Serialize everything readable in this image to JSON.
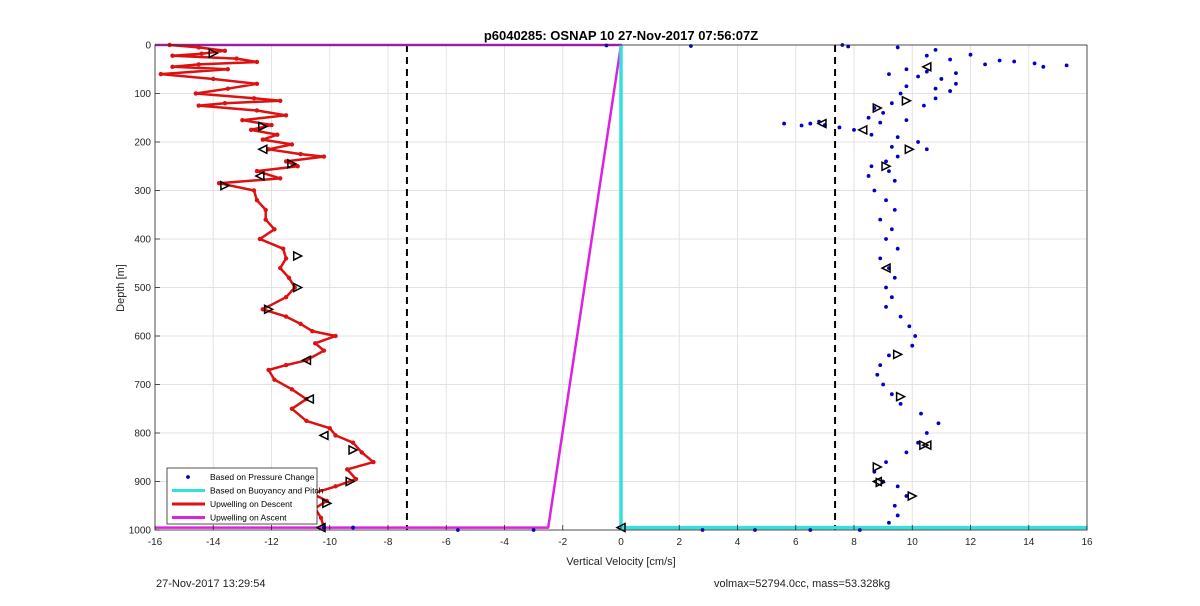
{
  "chart_data": {
    "type": "scatter",
    "title": "p6040285: OSNAP 10 27-Nov-2017 07:56:07Z",
    "xlabel": "Vertical Velocity [cm/s]",
    "ylabel": "Depth [m]",
    "xlim": [
      -16,
      16
    ],
    "ylim": [
      0,
      1000
    ],
    "y_reversed": true,
    "grid": true,
    "legend_placement": "bottom-left",
    "x_ticks": [
      "-16",
      "-14",
      "-12",
      "-10",
      "-8",
      "-6",
      "-4",
      "-2",
      "0",
      "2",
      "4",
      "6",
      "8",
      "10",
      "12",
      "14",
      "16"
    ],
    "y_ticks": [
      "0",
      "100",
      "200",
      "300",
      "400",
      "500",
      "600",
      "700",
      "800",
      "900",
      "1000"
    ],
    "reference_lines": [
      -7.35,
      7.35
    ],
    "series": [
      {
        "name": "Based on Pressure Change",
        "kind": "points",
        "color": "#0000cc",
        "points": [
          [
            7.6,
            0
          ],
          [
            7.8,
            3
          ],
          [
            2.4,
            2
          ],
          [
            -0.5,
            1
          ],
          [
            9.5,
            5
          ],
          [
            10.8,
            10
          ],
          [
            10.5,
            22
          ],
          [
            12,
            20
          ],
          [
            11.3,
            30
          ],
          [
            13,
            32
          ],
          [
            13.5,
            34
          ],
          [
            12.5,
            40
          ],
          [
            14.2,
            38
          ],
          [
            15.3,
            42
          ],
          [
            14.5,
            45
          ],
          [
            9.8,
            50
          ],
          [
            10.5,
            55
          ],
          [
            11.5,
            58
          ],
          [
            9.2,
            60
          ],
          [
            10.2,
            65
          ],
          [
            11,
            70
          ],
          [
            11.5,
            80
          ],
          [
            9.8,
            85
          ],
          [
            10.8,
            90
          ],
          [
            11.3,
            95
          ],
          [
            9.6,
            100
          ],
          [
            10.8,
            110
          ],
          [
            9.3,
            120
          ],
          [
            10.4,
            125
          ],
          [
            8.7,
            130
          ],
          [
            9,
            140
          ],
          [
            8.5,
            150
          ],
          [
            9.8,
            155
          ],
          [
            8.9,
            160
          ],
          [
            6.8,
            158
          ],
          [
            6.5,
            162
          ],
          [
            7,
            165
          ],
          [
            6.2,
            166
          ],
          [
            7.5,
            170
          ],
          [
            5.6,
            162
          ],
          [
            8,
            175
          ],
          [
            8.6,
            185
          ],
          [
            9.5,
            190
          ],
          [
            10.2,
            200
          ],
          [
            9.3,
            210
          ],
          [
            10.5,
            215
          ],
          [
            9.5,
            230
          ],
          [
            9.1,
            240
          ],
          [
            8.6,
            250
          ],
          [
            9.2,
            260
          ],
          [
            8.5,
            270
          ],
          [
            9.4,
            280
          ],
          [
            8.7,
            300
          ],
          [
            9.1,
            320
          ],
          [
            9.4,
            340
          ],
          [
            8.9,
            360
          ],
          [
            9.3,
            380
          ],
          [
            9.1,
            400
          ],
          [
            9.5,
            420
          ],
          [
            8.9,
            440
          ],
          [
            9.2,
            460
          ],
          [
            9.4,
            480
          ],
          [
            9.1,
            500
          ],
          [
            9.3,
            520
          ],
          [
            9.1,
            540
          ],
          [
            9.6,
            560
          ],
          [
            9.9,
            580
          ],
          [
            10.1,
            600
          ],
          [
            10,
            620
          ],
          [
            9.2,
            640
          ],
          [
            8.9,
            660
          ],
          [
            8.8,
            680
          ],
          [
            9,
            700
          ],
          [
            9.3,
            720
          ],
          [
            9.6,
            740
          ],
          [
            10.3,
            760
          ],
          [
            10.9,
            780
          ],
          [
            10.5,
            800
          ],
          [
            10.2,
            820
          ],
          [
            9.8,
            840
          ],
          [
            9.1,
            860
          ],
          [
            8.7,
            880
          ],
          [
            9,
            900
          ],
          [
            9.5,
            910
          ],
          [
            9.8,
            930
          ],
          [
            9.4,
            950
          ],
          [
            9.5,
            970
          ],
          [
            9.2,
            985
          ],
          [
            8.2,
            1000
          ],
          [
            6.5,
            1000
          ],
          [
            2.8,
            1000
          ],
          [
            4.6,
            1000
          ],
          [
            -3,
            1000
          ],
          [
            -5.6,
            1000
          ],
          [
            -9.2,
            995
          ],
          [
            -10.2,
            995
          ]
        ]
      },
      {
        "name": "Based on Buoyancy and Pitch",
        "kind": "line",
        "color": "#33e0e0",
        "points": [
          [
            0,
            0
          ],
          [
            0,
            20
          ],
          [
            0,
            200
          ],
          [
            0,
            500
          ],
          [
            0,
            800
          ],
          [
            0,
            995
          ],
          [
            16,
            995
          ]
        ]
      },
      {
        "name": "Upwelling on Descent",
        "kind": "line",
        "color": "#dd1111",
        "points": [
          [
            -15.5,
            0
          ],
          [
            -14.5,
            5
          ],
          [
            -13.6,
            12
          ],
          [
            -14.4,
            18
          ],
          [
            -15.4,
            22
          ],
          [
            -13.2,
            28
          ],
          [
            -12.5,
            35
          ],
          [
            -14.5,
            40
          ],
          [
            -15.4,
            45
          ],
          [
            -13.5,
            50
          ],
          [
            -15.8,
            60
          ],
          [
            -14,
            70
          ],
          [
            -12.5,
            80
          ],
          [
            -13.5,
            90
          ],
          [
            -14.6,
            100
          ],
          [
            -12.6,
            110
          ],
          [
            -11.7,
            115
          ],
          [
            -13.6,
            120
          ],
          [
            -14.5,
            125
          ],
          [
            -12.5,
            135
          ],
          [
            -11.5,
            145
          ],
          [
            -13,
            155
          ],
          [
            -12,
            165
          ],
          [
            -12.7,
            175
          ],
          [
            -11.8,
            185
          ],
          [
            -12.3,
            195
          ],
          [
            -11.3,
            205
          ],
          [
            -12.1,
            215
          ],
          [
            -11,
            225
          ],
          [
            -10.2,
            230
          ],
          [
            -11.5,
            240
          ],
          [
            -11.1,
            250
          ],
          [
            -12.5,
            260
          ],
          [
            -11.7,
            275
          ],
          [
            -13.8,
            285
          ],
          [
            -12.6,
            300
          ],
          [
            -12.5,
            320
          ],
          [
            -12.2,
            340
          ],
          [
            -12.2,
            360
          ],
          [
            -11.9,
            380
          ],
          [
            -12.4,
            400
          ],
          [
            -11.6,
            420
          ],
          [
            -11.5,
            440
          ],
          [
            -11.7,
            460
          ],
          [
            -11.4,
            480
          ],
          [
            -11.2,
            500
          ],
          [
            -11.5,
            520
          ],
          [
            -12.3,
            545
          ],
          [
            -11.5,
            560
          ],
          [
            -11,
            575
          ],
          [
            -10.6,
            590
          ],
          [
            -9.8,
            600
          ],
          [
            -10.5,
            615
          ],
          [
            -10.2,
            630
          ],
          [
            -10.8,
            650
          ],
          [
            -11.5,
            660
          ],
          [
            -12.1,
            670
          ],
          [
            -11.9,
            690
          ],
          [
            -11.3,
            710
          ],
          [
            -10.8,
            730
          ],
          [
            -11.3,
            750
          ],
          [
            -10.8,
            775
          ],
          [
            -10,
            790
          ],
          [
            -9.8,
            805
          ],
          [
            -9.2,
            820
          ],
          [
            -8.9,
            840
          ],
          [
            -8.5,
            860
          ],
          [
            -9.4,
            875
          ],
          [
            -9.1,
            895
          ],
          [
            -9.8,
            910
          ],
          [
            -10.6,
            925
          ],
          [
            -10.1,
            940
          ],
          [
            -10.5,
            955
          ],
          [
            -10.3,
            975
          ],
          [
            -10.2,
            995
          ]
        ]
      },
      {
        "name": "Upwelling on Ascent",
        "kind": "line",
        "color": "#dd22dd",
        "points": [
          [
            -16,
            0
          ],
          [
            0,
            0
          ],
          [
            -2.5,
            995
          ],
          [
            -16,
            995
          ]
        ]
      }
    ],
    "markers": [
      {
        "direction": "right",
        "points": [
          [
            -14,
            17
          ],
          [
            -12.3,
            168
          ],
          [
            -11.3,
            245
          ],
          [
            -13.6,
            290
          ],
          [
            -11.1,
            435
          ],
          [
            -11.1,
            500
          ],
          [
            -12.1,
            545
          ],
          [
            -9.2,
            835
          ],
          [
            -9.3,
            900
          ],
          [
            -10.1,
            945
          ],
          [
            9.8,
            115
          ],
          [
            8.8,
            130
          ],
          [
            9.9,
            215
          ],
          [
            9.1,
            250
          ],
          [
            9.5,
            638
          ],
          [
            9.6,
            725
          ],
          [
            8.8,
            870
          ],
          [
            8.9,
            902
          ],
          [
            10,
            930
          ],
          [
            10.4,
            825
          ]
        ]
      },
      {
        "direction": "left",
        "points": [
          [
            -12.3,
            215
          ],
          [
            -12.4,
            270
          ],
          [
            -10.8,
            650
          ],
          [
            -10.7,
            730
          ],
          [
            -10.2,
            805
          ],
          [
            10.5,
            45
          ],
          [
            6.9,
            162
          ],
          [
            8.3,
            175
          ],
          [
            9.1,
            460
          ],
          [
            10.5,
            825
          ],
          [
            8.8,
            900
          ],
          [
            0,
            995
          ],
          [
            -10.3,
            995
          ]
        ]
      }
    ],
    "info_left": "27-Nov-2017 13:29:54",
    "info_right": "volmax=52794.0cc, mass=53.328kg"
  }
}
